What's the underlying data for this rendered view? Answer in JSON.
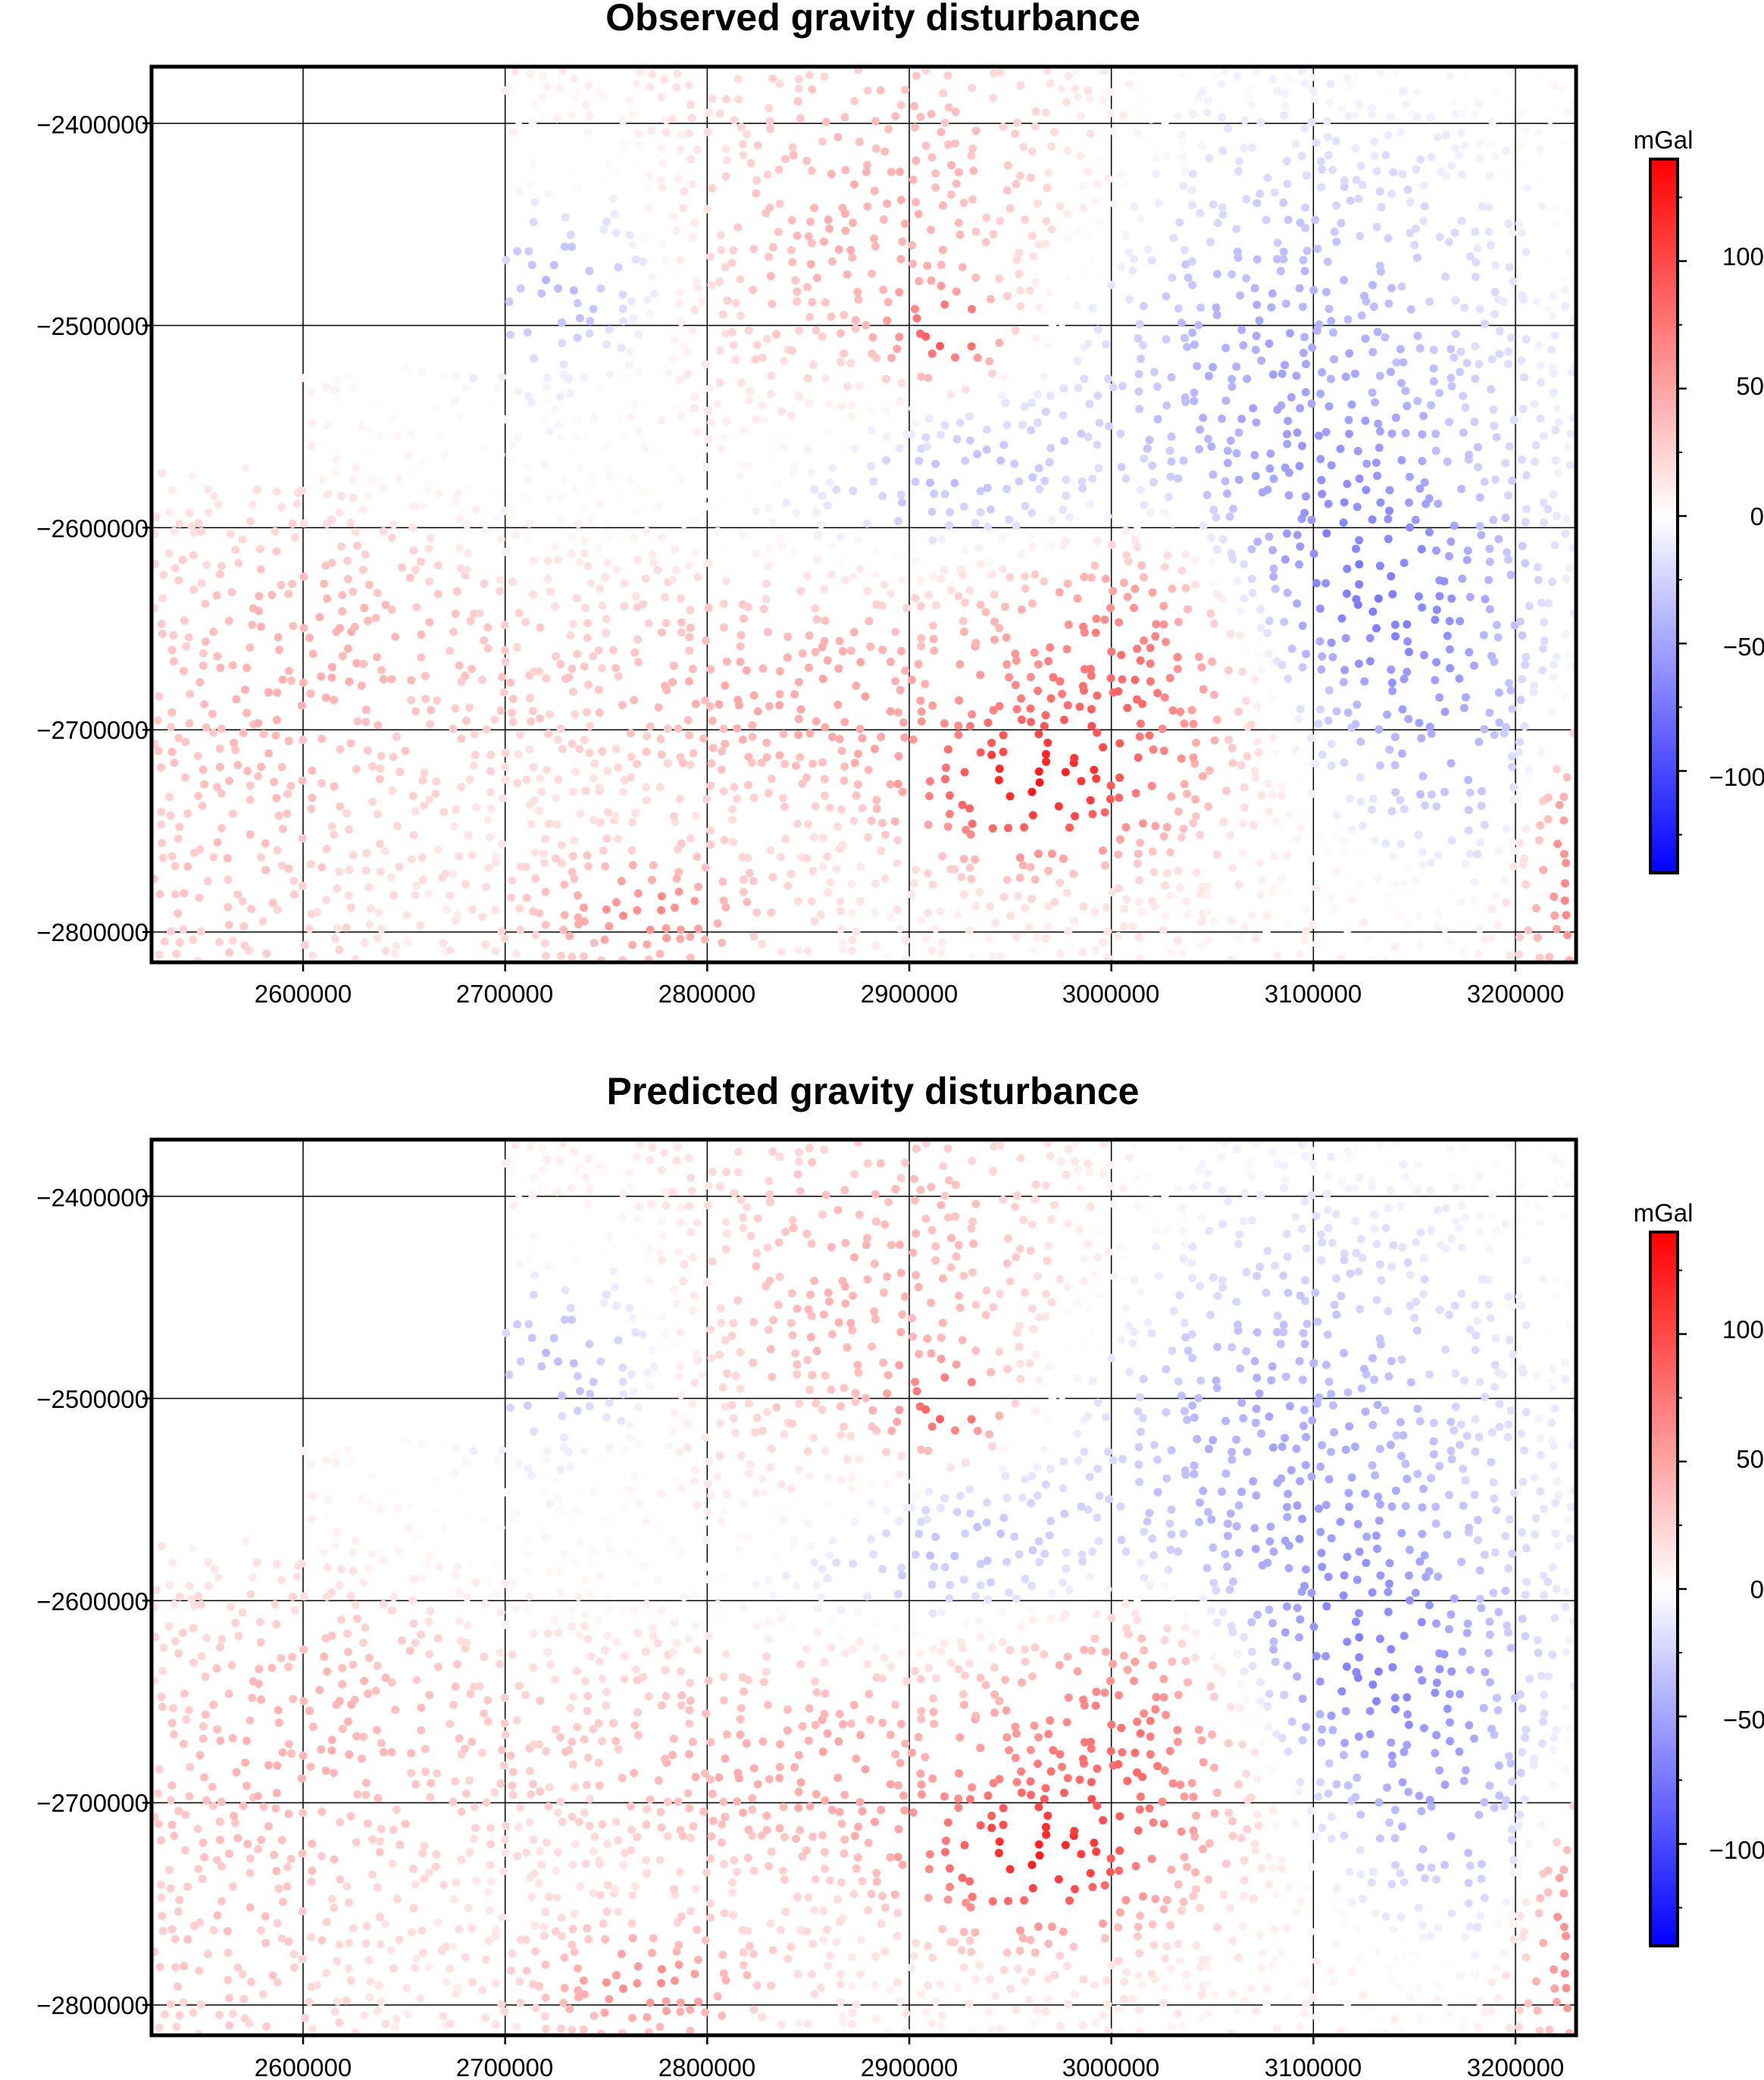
{
  "chart_data": [
    {
      "type": "scatter",
      "title": "Observed gravity disturbance",
      "xlabel": "",
      "ylabel": "",
      "xlim": [
        2525000,
        3230000
      ],
      "ylim": [
        -2815000,
        -2372000
      ],
      "x_ticks": [
        2600000,
        2700000,
        2800000,
        2900000,
        3000000,
        3100000,
        3200000
      ],
      "y_ticks": [
        -2400000,
        -2500000,
        -2600000,
        -2700000,
        -2800000
      ],
      "x_tick_labels": [
        "2600000",
        "2700000",
        "2800000",
        "2900000",
        "3000000",
        "3100000",
        "3200000"
      ],
      "y_tick_labels": [
        "−2400000",
        "−2500000",
        "−2600000",
        "−2700000",
        "−2800000"
      ],
      "grid": true,
      "colorbar": {
        "label": "mGal",
        "range": [
          -140,
          140
        ],
        "ticks": [
          -100,
          -50,
          0,
          50,
          100
        ],
        "tick_labels": [
          "−100",
          "−50",
          "0",
          "50",
          "100"
        ],
        "colormap": [
          "#0000ff",
          "#ffffff",
          "#ff0000"
        ]
      },
      "anomaly_regions": [
        {
          "x": 2730000,
          "y": -2480000,
          "sx": 40000,
          "sy": 30000,
          "value": -50
        },
        {
          "x": 2790000,
          "y": -2420000,
          "sx": 70000,
          "sy": 35000,
          "value": -18
        },
        {
          "x": 2680000,
          "y": -2570000,
          "sx": 70000,
          "sy": 45000,
          "value": -14
        },
        {
          "x": 2900000,
          "y": -2590000,
          "sx": 70000,
          "sy": 25000,
          "value": -25
        },
        {
          "x": 2935000,
          "y": -2565000,
          "sx": 45000,
          "sy": 25000,
          "value": -20
        },
        {
          "x": 3080000,
          "y": -2520000,
          "sx": 90000,
          "sy": 90000,
          "value": -55
        },
        {
          "x": 3120000,
          "y": -2640000,
          "sx": 60000,
          "sy": 50000,
          "value": -65
        },
        {
          "x": 3180000,
          "y": -2720000,
          "sx": 40000,
          "sy": 40000,
          "value": -35
        },
        {
          "x": 2880000,
          "y": -2440000,
          "sx": 90000,
          "sy": 60000,
          "value": 45
        },
        {
          "x": 2920000,
          "y": -2505000,
          "sx": 20000,
          "sy": 15000,
          "value": 80
        },
        {
          "x": 3020000,
          "y": -2660000,
          "sx": 50000,
          "sy": 50000,
          "value": 85
        },
        {
          "x": 2960000,
          "y": -2730000,
          "sx": 40000,
          "sy": 25000,
          "value": 95
        },
        {
          "x": 2850000,
          "y": -2680000,
          "sx": 80000,
          "sy": 40000,
          "value": 40
        },
        {
          "x": 2770000,
          "y": -2790000,
          "sx": 40000,
          "sy": 20000,
          "value": 55
        },
        {
          "x": 2620000,
          "y": -2650000,
          "sx": 70000,
          "sy": 50000,
          "value": 30
        },
        {
          "x": 3230000,
          "y": -2760000,
          "sx": 20000,
          "sy": 50000,
          "value": 70
        },
        {
          "x": 2560000,
          "y": -2760000,
          "sx": 60000,
          "sy": 70000,
          "value": 22
        }
      ]
    },
    {
      "type": "scatter",
      "title": "Predicted gravity disturbance",
      "xlabel": "",
      "ylabel": "",
      "xlim": [
        2525000,
        3230000
      ],
      "ylim": [
        -2815000,
        -2372000
      ],
      "x_ticks": [
        2600000,
        2700000,
        2800000,
        2900000,
        3000000,
        3100000,
        3200000
      ],
      "y_ticks": [
        -2400000,
        -2500000,
        -2600000,
        -2700000,
        -2800000
      ],
      "x_tick_labels": [
        "2600000",
        "2700000",
        "2800000",
        "2900000",
        "3000000",
        "3100000",
        "3200000"
      ],
      "y_tick_labels": [
        "−2400000",
        "−2500000",
        "−2600000",
        "−2700000",
        "−2800000"
      ],
      "grid": true,
      "colorbar": {
        "label": "mGal",
        "range": [
          -140,
          140
        ],
        "ticks": [
          -100,
          -50,
          0,
          50,
          100
        ],
        "tick_labels": [
          "−100",
          "−50",
          "0",
          "50",
          "100"
        ],
        "colormap": [
          "#0000ff",
          "#ffffff",
          "#ff0000"
        ]
      },
      "anomaly_regions": [
        {
          "x": 2730000,
          "y": -2480000,
          "sx": 40000,
          "sy": 30000,
          "value": -48
        },
        {
          "x": 2790000,
          "y": -2420000,
          "sx": 70000,
          "sy": 35000,
          "value": -17
        },
        {
          "x": 2680000,
          "y": -2570000,
          "sx": 70000,
          "sy": 45000,
          "value": -13
        },
        {
          "x": 2900000,
          "y": -2590000,
          "sx": 70000,
          "sy": 25000,
          "value": -24
        },
        {
          "x": 2935000,
          "y": -2565000,
          "sx": 45000,
          "sy": 25000,
          "value": -19
        },
        {
          "x": 3080000,
          "y": -2520000,
          "sx": 90000,
          "sy": 90000,
          "value": -53
        },
        {
          "x": 3120000,
          "y": -2640000,
          "sx": 60000,
          "sy": 50000,
          "value": -62
        },
        {
          "x": 3180000,
          "y": -2720000,
          "sx": 40000,
          "sy": 40000,
          "value": -33
        },
        {
          "x": 2880000,
          "y": -2440000,
          "sx": 90000,
          "sy": 60000,
          "value": 43
        },
        {
          "x": 2920000,
          "y": -2505000,
          "sx": 20000,
          "sy": 15000,
          "value": 78
        },
        {
          "x": 3020000,
          "y": -2660000,
          "sx": 50000,
          "sy": 50000,
          "value": 83
        },
        {
          "x": 2960000,
          "y": -2730000,
          "sx": 40000,
          "sy": 25000,
          "value": 92
        },
        {
          "x": 2850000,
          "y": -2680000,
          "sx": 80000,
          "sy": 40000,
          "value": 39
        },
        {
          "x": 2770000,
          "y": -2790000,
          "sx": 40000,
          "sy": 20000,
          "value": 53
        },
        {
          "x": 2620000,
          "y": -2650000,
          "sx": 70000,
          "sy": 50000,
          "value": 29
        },
        {
          "x": 3230000,
          "y": -2760000,
          "sx": 20000,
          "sy": 50000,
          "value": 68
        },
        {
          "x": 2560000,
          "y": -2760000,
          "sx": 60000,
          "sy": 70000,
          "value": 21
        }
      ]
    }
  ]
}
